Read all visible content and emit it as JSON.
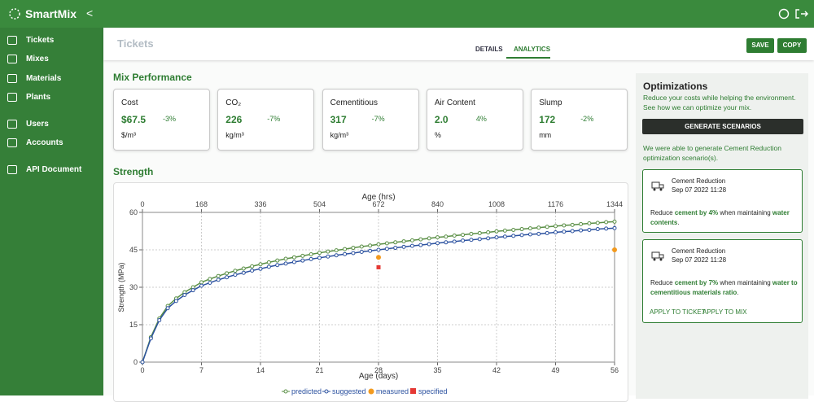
{
  "sidebar": {
    "brand": "SmartMix",
    "collapse": "<",
    "items": [
      "Tickets",
      "Mixes",
      "Materials",
      "Plants",
      "Users",
      "Accounts",
      "API Document"
    ]
  },
  "header": {
    "title": "Tickets",
    "tabs": [
      "DETAILS",
      "ANALYTICS"
    ],
    "buttons": [
      "SAVE",
      "COPY"
    ]
  },
  "performance": {
    "title": "Mix Performance",
    "cards": [
      {
        "label": "Cost",
        "value": "$67.5",
        "change": "-3%",
        "unit": "$/m³"
      },
      {
        "label": "CO₂",
        "value": "226",
        "change": "-7%",
        "unit": "kg/m³"
      },
      {
        "label": "Cementitious",
        "value": "317",
        "change": "-7%",
        "unit": "kg/m³"
      },
      {
        "label": "Air Content",
        "value": "2.0",
        "change": "4%",
        "unit": "%"
      },
      {
        "label": "Slump",
        "value": "172",
        "change": "-2%",
        "unit": "mm"
      }
    ]
  },
  "strength": {
    "title": "Strength"
  },
  "chart_data": {
    "type": "line",
    "x_label": "Age (days)",
    "x2_label": "Age (hrs)",
    "y_label": "Strength (MPa)",
    "x": [
      0,
      1,
      2,
      3,
      4,
      5,
      6,
      7,
      8,
      9,
      10,
      11,
      12,
      13,
      14,
      15,
      16,
      17,
      18,
      19,
      20,
      21,
      22,
      23,
      24,
      25,
      26,
      27,
      28,
      29,
      30,
      31,
      32,
      33,
      34,
      35,
      36,
      37,
      38,
      39,
      40,
      41,
      42,
      43,
      44,
      45,
      46,
      47,
      48,
      49,
      50,
      51,
      52,
      53,
      54,
      55,
      56
    ],
    "xlim": [
      0,
      56
    ],
    "xticks": [
      0,
      7,
      14,
      21,
      28,
      35,
      42,
      49,
      56
    ],
    "x2lim": [
      0,
      1344
    ],
    "x2ticks": [
      0,
      168,
      336,
      504,
      672,
      840,
      1008,
      1176,
      1344
    ],
    "ylim": [
      0,
      60
    ],
    "yticks": [
      0,
      15,
      30,
      45,
      60
    ],
    "grid": true,
    "series": [
      {
        "name": "predicted",
        "color": "#5a8f45",
        "values": [
          0,
          10,
          17.5,
          22.5,
          25.5,
          28,
          30,
          32,
          33.3,
          34.5,
          35.6,
          36.6,
          37.5,
          38.4,
          39.2,
          40,
          40.7,
          41.4,
          42,
          42.6,
          43.2,
          43.8,
          44.3,
          44.8,
          45.3,
          45.8,
          46.3,
          46.7,
          47.2,
          47.6,
          48,
          48.4,
          48.8,
          49.2,
          49.6,
          50,
          50.3,
          50.7,
          51,
          51.4,
          51.7,
          52,
          52.4,
          52.7,
          53,
          53.3,
          53.6,
          53.9,
          54.2,
          54.5,
          54.8,
          55,
          55.3,
          55.6,
          55.8,
          56.1,
          56.3
        ]
      },
      {
        "name": "suggested",
        "color": "#2c52a0",
        "values": [
          0,
          9.5,
          16.8,
          21.6,
          24.5,
          26.9,
          28.8,
          30.6,
          31.8,
          33,
          34,
          35,
          35.8,
          36.7,
          37.4,
          38.2,
          38.9,
          39.5,
          40.1,
          40.7,
          41.3,
          41.8,
          42.3,
          42.8,
          43.3,
          43.7,
          44.2,
          44.6,
          45,
          45.4,
          45.8,
          46.2,
          46.6,
          46.9,
          47.3,
          47.7,
          48,
          48.3,
          48.7,
          49,
          49.3,
          49.6,
          50,
          50.3,
          50.6,
          50.9,
          51.2,
          51.4,
          51.7,
          52,
          52.3,
          52.5,
          52.8,
          53,
          53.3,
          53.5,
          53.7
        ]
      },
      {
        "name": "measured",
        "color": "#f39a1e",
        "x": [
          28,
          56
        ],
        "values": [
          42,
          45
        ]
      },
      {
        "name": "specified",
        "color": "#e53935",
        "x": [
          28
        ],
        "values": [
          38
        ]
      }
    ]
  },
  "optimizations": {
    "title": "Optimizations",
    "description": "Reduce your costs while helping the environment. See how we can optimize your mix.",
    "button": "GENERATE SCENARIOS",
    "message": "We were able to generate Cement Reduction optimization scenario(s).",
    "cards": [
      {
        "title": "Cement Reduction",
        "date": "Sep 07 2022 11:28",
        "prefix": "Reduce",
        "highlight": "cement by 4%",
        "middle": "when maintaining",
        "target": "water contents",
        "suffix": "."
      },
      {
        "title": "Cement Reduction",
        "date": "Sep 07 2022 11:28",
        "prefix": "Reduce",
        "highlight": "cement by 7%",
        "middle": "when maintaining",
        "target": "water to cementitious materials ratio",
        "suffix": ".",
        "actions": [
          "APPLY TO TICKET",
          "APPLY TO MIX"
        ]
      }
    ]
  }
}
